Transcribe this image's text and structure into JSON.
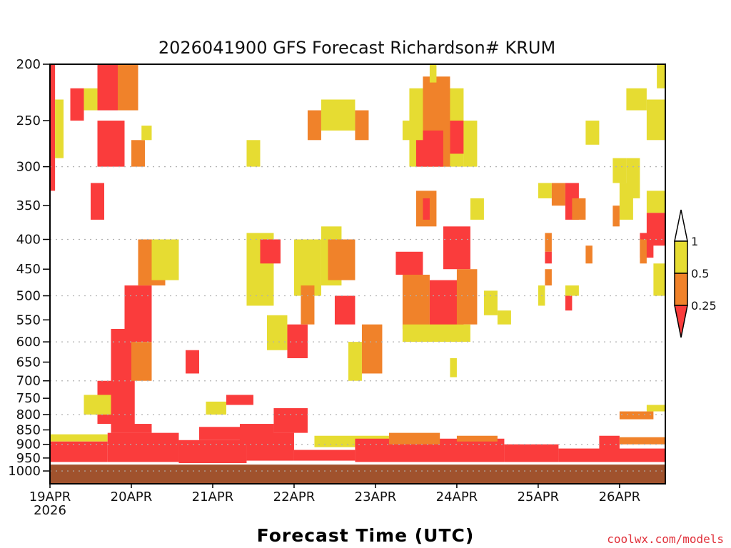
{
  "chart_data": {
    "type": "heatmap",
    "title": "2026041900 GFS Forecast Richardson# KRUM",
    "xlabel": "Forecast Time (UTC)",
    "ylabel": "",
    "x_units": "forecast hour",
    "xlim": [
      0,
      181.5
    ],
    "ylim": [
      200,
      1052
    ],
    "y_scale": "log-pressure, inverted",
    "x_ticks": [
      {
        "hour": 0,
        "label": "19APR",
        "sub": "2026"
      },
      {
        "hour": 24,
        "label": "20APR"
      },
      {
        "hour": 48,
        "label": "21APR"
      },
      {
        "hour": 72,
        "label": "22APR"
      },
      {
        "hour": 96,
        "label": "23APR"
      },
      {
        "hour": 120,
        "label": "24APR"
      },
      {
        "hour": 144,
        "label": "25APR"
      },
      {
        "hour": 168,
        "label": "26APR"
      }
    ],
    "y_ticks": [
      "200",
      "250",
      "300",
      "350",
      "400",
      "450",
      "500",
      "550",
      "600",
      "650",
      "700",
      "750",
      "800",
      "850",
      "900",
      "950",
      "1000"
    ],
    "grid_levels": [
      300,
      400,
      500,
      600,
      700,
      800,
      900,
      1000
    ],
    "ground_top_p": 975,
    "colors": {
      "1": "#fa3c3c",
      "2": "#f0822a",
      "3": "#e6dc32",
      "ground": "#a0522d"
    },
    "legend": {
      "placement": "right",
      "labels": [
        "1",
        "0.5",
        "0.25"
      ],
      "bins": [
        "> 1",
        "0.5 - 1",
        "0.25 - 0.5",
        "< 0.25"
      ]
    },
    "cells_format": "[hour_start, hour_end, p_top, p_bottom, category(1=<0.25,2=0.25-0.5,3=0.5-1)]",
    "cells": [
      [
        0,
        17,
        865,
        890,
        3
      ],
      [
        0,
        17,
        890,
        965,
        1
      ],
      [
        17,
        38,
        860,
        965,
        1
      ],
      [
        18,
        30,
        830,
        860,
        1
      ],
      [
        38,
        58,
        885,
        970,
        1
      ],
      [
        44,
        58,
        840,
        885,
        1
      ],
      [
        56,
        66,
        830,
        900,
        1
      ],
      [
        58,
        72,
        860,
        960,
        1
      ],
      [
        66,
        76,
        780,
        860,
        1
      ],
      [
        72,
        90,
        920,
        960,
        1
      ],
      [
        78,
        100,
        870,
        910,
        3
      ],
      [
        90,
        134,
        880,
        965,
        1
      ],
      [
        100,
        115,
        860,
        900,
        2
      ],
      [
        120,
        132,
        870,
        890,
        2
      ],
      [
        134,
        150,
        900,
        965,
        1
      ],
      [
        150,
        181.5,
        915,
        965,
        1
      ],
      [
        162,
        168,
        870,
        920,
        1
      ],
      [
        168,
        181.5,
        875,
        900,
        2
      ],
      [
        168,
        178,
        790,
        815,
        2
      ],
      [
        176,
        181.5,
        770,
        790,
        3
      ],
      [
        18,
        25,
        570,
        850,
        1
      ],
      [
        22,
        30,
        480,
        600,
        1
      ],
      [
        26,
        34,
        400,
        480,
        2
      ],
      [
        30,
        38,
        400,
        470,
        3
      ],
      [
        14,
        24,
        700,
        830,
        1
      ],
      [
        10,
        18,
        740,
        800,
        3
      ],
      [
        24,
        30,
        600,
        700,
        2
      ],
      [
        14,
        22,
        250,
        300,
        1
      ],
      [
        14,
        20,
        200,
        240,
        1
      ],
      [
        20,
        26,
        200,
        240,
        2
      ],
      [
        24,
        28,
        270,
        300,
        2
      ],
      [
        6,
        10,
        220,
        250,
        1
      ],
      [
        10,
        14,
        220,
        240,
        3
      ],
      [
        0,
        1.5,
        200,
        330,
        1
      ],
      [
        1.5,
        4,
        230,
        290,
        3
      ],
      [
        27,
        30,
        255,
        270,
        3
      ],
      [
        12,
        16,
        320,
        370,
        1
      ],
      [
        40,
        44,
        620,
        680,
        1
      ],
      [
        52,
        60,
        740,
        770,
        1
      ],
      [
        46,
        52,
        760,
        800,
        3
      ],
      [
        58,
        62,
        270,
        300,
        3
      ],
      [
        58,
        66,
        390,
        520,
        3
      ],
      [
        62,
        68,
        400,
        440,
        1
      ],
      [
        64,
        70,
        540,
        620,
        3
      ],
      [
        70,
        76,
        560,
        640,
        1
      ],
      [
        72,
        80,
        400,
        500,
        3
      ],
      [
        74,
        78,
        480,
        560,
        2
      ],
      [
        80,
        86,
        380,
        480,
        3
      ],
      [
        82,
        90,
        400,
        470,
        2
      ],
      [
        84,
        90,
        500,
        560,
        1
      ],
      [
        76,
        80,
        240,
        270,
        2
      ],
      [
        80,
        90,
        230,
        260,
        3
      ],
      [
        90,
        94,
        240,
        270,
        2
      ],
      [
        88,
        92,
        600,
        700,
        3
      ],
      [
        92,
        98,
        560,
        680,
        2
      ],
      [
        106,
        122,
        220,
        300,
        3
      ],
      [
        110,
        118,
        210,
        300,
        2
      ],
      [
        112,
        114,
        200,
        215,
        3
      ],
      [
        108,
        116,
        260,
        300,
        1
      ],
      [
        118,
        122,
        250,
        285,
        1
      ],
      [
        122,
        126,
        250,
        300,
        3
      ],
      [
        104,
        110,
        250,
        270,
        3
      ],
      [
        102,
        110,
        420,
        460,
        1
      ],
      [
        104,
        112,
        460,
        570,
        2
      ],
      [
        112,
        122,
        470,
        580,
        1
      ],
      [
        116,
        124,
        380,
        450,
        1
      ],
      [
        120,
        126,
        450,
        560,
        2
      ],
      [
        104,
        124,
        560,
        600,
        3
      ],
      [
        108,
        114,
        330,
        380,
        2
      ],
      [
        110,
        112,
        340,
        370,
        1
      ],
      [
        124,
        128,
        340,
        370,
        3
      ],
      [
        128,
        132,
        490,
        540,
        3
      ],
      [
        132,
        136,
        530,
        560,
        3
      ],
      [
        118,
        120,
        640,
        690,
        3
      ],
      [
        144,
        148,
        320,
        340,
        3
      ],
      [
        148,
        152,
        320,
        350,
        2
      ],
      [
        152,
        156,
        320,
        370,
        1
      ],
      [
        154,
        158,
        340,
        370,
        2
      ],
      [
        146,
        148,
        390,
        420,
        2
      ],
      [
        146,
        148,
        420,
        440,
        1
      ],
      [
        146,
        148,
        450,
        480,
        2
      ],
      [
        144,
        146,
        480,
        520,
        3
      ],
      [
        152,
        156,
        480,
        500,
        3
      ],
      [
        152,
        154,
        500,
        530,
        1
      ],
      [
        158,
        160,
        410,
        440,
        2
      ],
      [
        166,
        170,
        290,
        320,
        3
      ],
      [
        168,
        172,
        320,
        370,
        3
      ],
      [
        166,
        168,
        350,
        380,
        2
      ],
      [
        170,
        174,
        290,
        340,
        3
      ],
      [
        174,
        178,
        390,
        430,
        1
      ],
      [
        176,
        181.5,
        360,
        410,
        1
      ],
      [
        176,
        181.5,
        330,
        360,
        3
      ],
      [
        174,
        176,
        400,
        440,
        2
      ],
      [
        178,
        181.5,
        440,
        500,
        3
      ],
      [
        170,
        176,
        220,
        240,
        3
      ],
      [
        176,
        181.5,
        230,
        270,
        3
      ],
      [
        179,
        181.5,
        200,
        220,
        3
      ],
      [
        158,
        162,
        250,
        275,
        3
      ]
    ]
  },
  "credit": "coolwx.com/models"
}
